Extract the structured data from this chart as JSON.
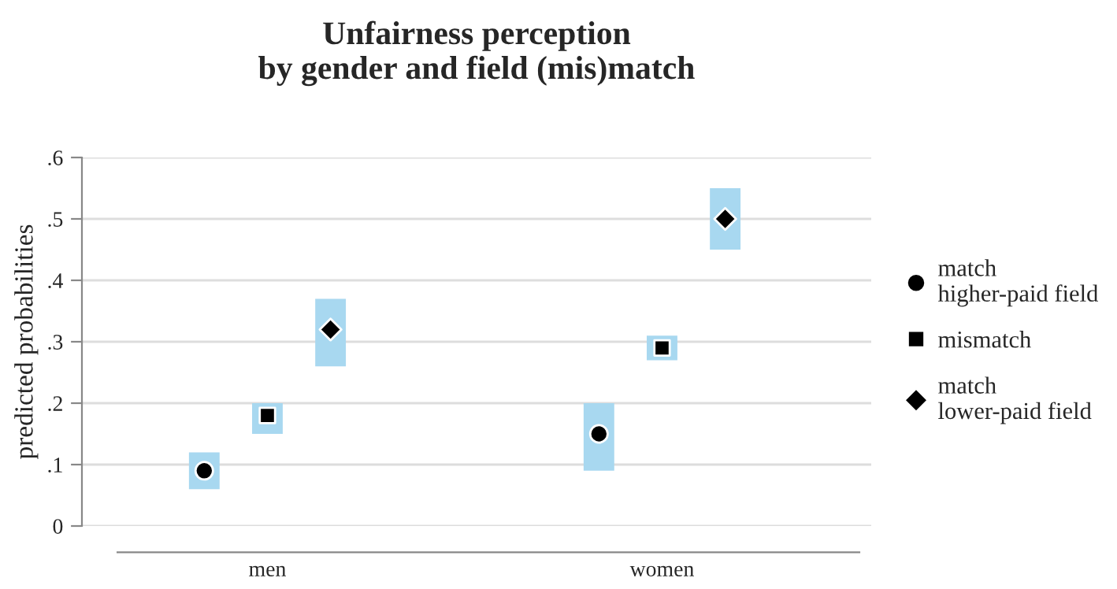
{
  "chart_data": {
    "type": "scatter",
    "title": "Unfairness perception\nby gender and field (mis)match",
    "ylabel": "predicted probabilities",
    "categories": [
      "men",
      "women"
    ],
    "series": [
      {
        "name": "match\nhigher-paid field",
        "color": "#000000",
        "marker": "circle",
        "values": [
          0.09,
          0.15
        ],
        "errors": [
          [
            0.06,
            0.12
          ],
          [
            0.09,
            0.2
          ]
        ]
      },
      {
        "name": "mismatch",
        "color": "#000000",
        "marker": "square",
        "values": [
          0.18,
          0.29
        ],
        "errors": [
          [
            0.15,
            0.2
          ],
          [
            0.27,
            0.31
          ]
        ]
      },
      {
        "name": "match\nlower-paid field",
        "color": "#000000",
        "marker": "diamond",
        "values": [
          0.32,
          0.5
        ],
        "errors": [
          [
            0.26,
            0.37
          ],
          [
            0.45,
            0.55
          ]
        ]
      }
    ],
    "ylim": [
      0,
      0.6
    ],
    "yticks": [
      0,
      {
        "value": 0.1,
        "label": ".1"
      },
      {
        "value": 0.2,
        "label": ".2"
      },
      {
        "value": 0.3,
        "label": ".3"
      },
      {
        "value": 0.4,
        "label": ".4"
      },
      {
        "value": 0.5,
        "label": ".5"
      },
      {
        "value": 0.6,
        "label": ".6"
      }
    ],
    "grid": "y",
    "legend": "right"
  }
}
